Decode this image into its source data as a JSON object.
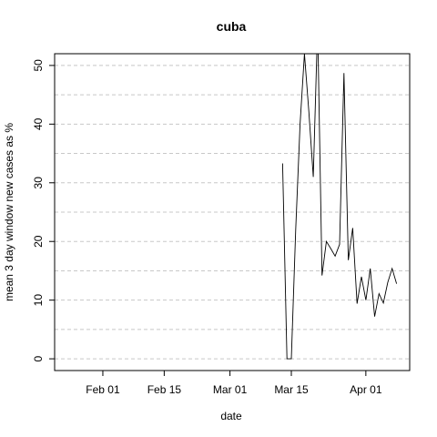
{
  "chart_data": {
    "type": "line",
    "title": "cuba",
    "xlabel": "date",
    "ylabel": "mean  3  day window new cases as %",
    "xlim": [
      "2020-01-21",
      "2020-04-11"
    ],
    "ylim": [
      -2,
      52
    ],
    "x_ticks": [
      {
        "date": "2020-02-01",
        "label": "Feb 01"
      },
      {
        "date": "2020-02-15",
        "label": "Feb 15"
      },
      {
        "date": "2020-03-01",
        "label": "Mar 01"
      },
      {
        "date": "2020-03-15",
        "label": "Mar 15"
      },
      {
        "date": "2020-04-01",
        "label": "Apr 01"
      }
    ],
    "y_ticks": [
      0,
      10,
      20,
      30,
      40,
      50
    ],
    "grid": "horizontal dashed",
    "line_color": "#000000",
    "grid_color": "#c8c8c8",
    "series": [
      {
        "x": [
          "2020-03-13",
          "2020-03-14",
          "2020-03-15",
          "2020-03-16",
          "2020-03-17",
          "2020-03-18",
          "2020-03-19",
          "2020-03-20",
          "2020-03-21",
          "2020-03-22",
          "2020-03-23",
          "2020-03-24",
          "2020-03-25",
          "2020-03-26",
          "2020-03-27",
          "2020-03-28",
          "2020-03-29",
          "2020-03-30",
          "2020-03-31",
          "2020-04-01",
          "2020-04-02",
          "2020-04-03",
          "2020-04-04",
          "2020-04-05",
          "2020-04-06",
          "2020-04-07",
          "2020-04-08"
        ],
        "y": [
          33.3,
          0,
          0,
          22.0,
          40.0,
          52.0,
          42.0,
          31.0,
          57.0,
          14.2,
          20.0,
          18.8,
          17.5,
          19.5,
          48.7,
          16.8,
          22.3,
          9.4,
          14.0,
          10.0,
          15.4,
          7.2,
          11.1,
          9.5,
          13.0,
          15.4,
          12.8
        ]
      }
    ]
  }
}
